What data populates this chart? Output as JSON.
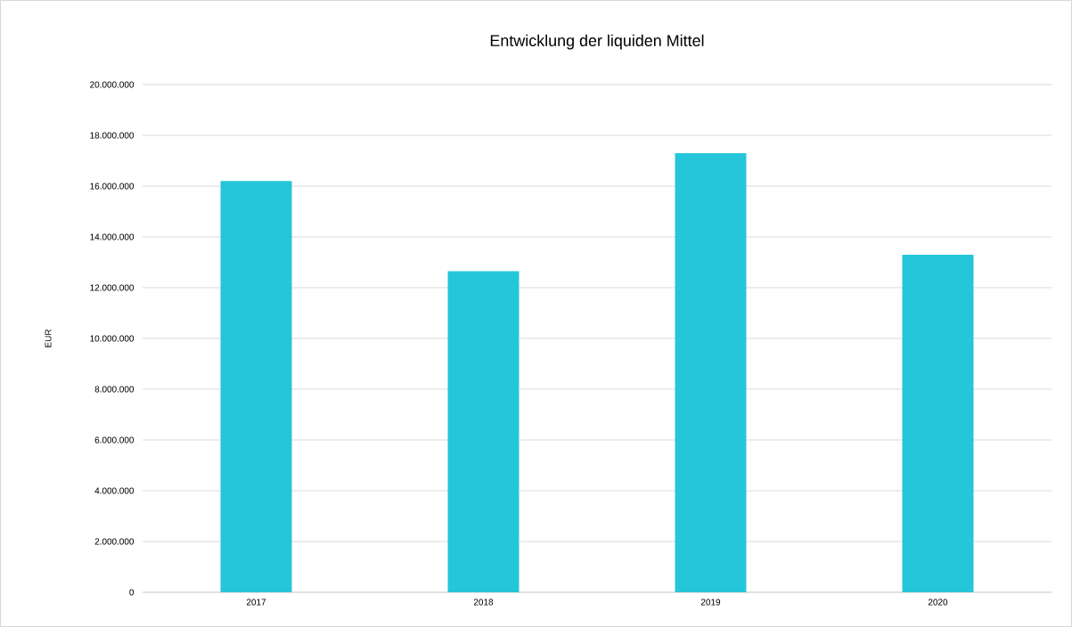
{
  "chart_data": {
    "type": "bar",
    "title": "Entwicklung der liquiden Mittel",
    "ylabel": "EUR",
    "categories": [
      "2017",
      "2018",
      "2019",
      "2020"
    ],
    "values": [
      16200000,
      12650000,
      17300000,
      13300000
    ],
    "color": "#26c6da",
    "ylim": [
      0,
      20000000
    ],
    "yticks": [
      {
        "value": 0,
        "label": "0"
      },
      {
        "value": 2000000,
        "label": "2.000.000"
      },
      {
        "value": 4000000,
        "label": "4.000.000"
      },
      {
        "value": 6000000,
        "label": "6.000.000"
      },
      {
        "value": 8000000,
        "label": "8.000.000"
      },
      {
        "value": 10000000,
        "label": "10.000.000"
      },
      {
        "value": 12000000,
        "label": "12.000.000"
      },
      {
        "value": 14000000,
        "label": "14.000.000"
      },
      {
        "value": 16000000,
        "label": "16.000.000"
      },
      {
        "value": 18000000,
        "label": "18.000.000"
      },
      {
        "value": 20000000,
        "label": "20.000.000"
      }
    ],
    "grid": "y"
  }
}
